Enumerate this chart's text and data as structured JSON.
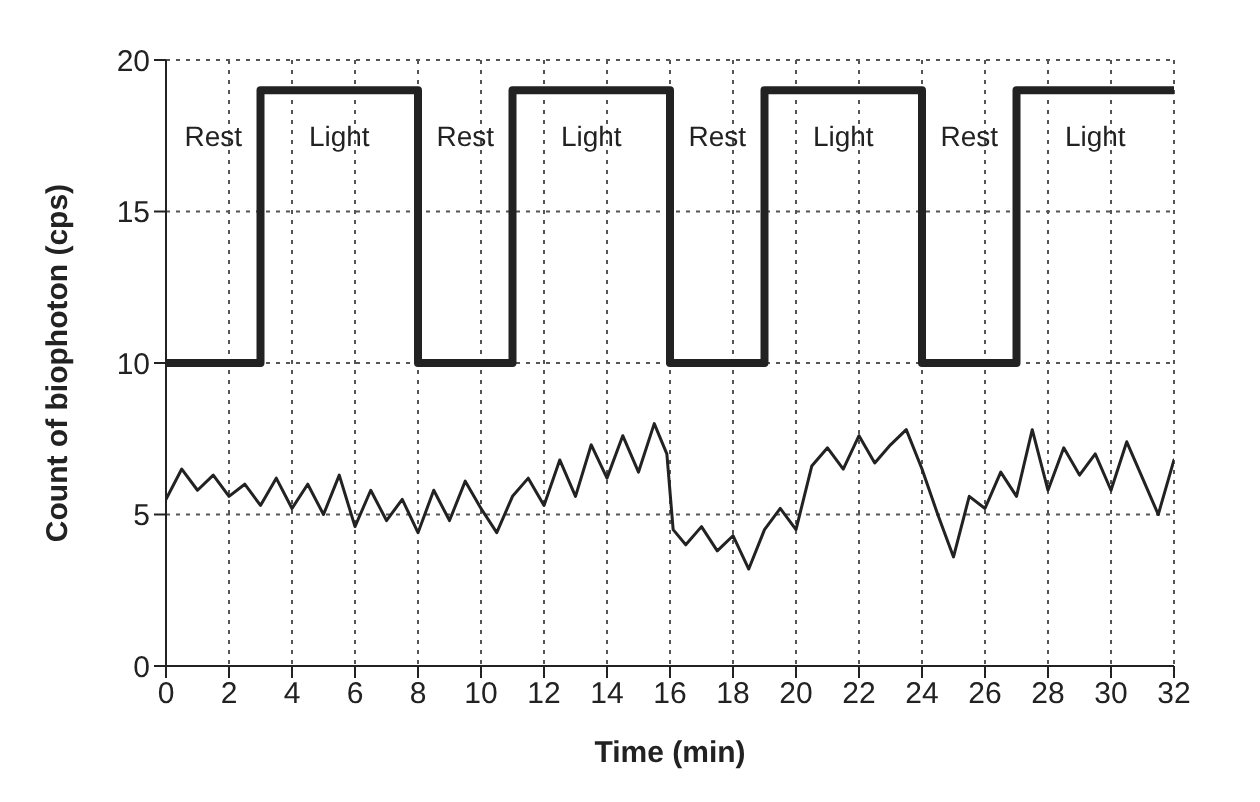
{
  "chart_data": {
    "type": "line",
    "xlabel": "Time (min)",
    "ylabel": "Count of biophoton (cps)",
    "xlim": [
      0,
      32
    ],
    "xticks": [
      0,
      2,
      4,
      6,
      8,
      10,
      12,
      14,
      16,
      18,
      20,
      22,
      24,
      26,
      28,
      30,
      32
    ],
    "ylim": [
      0,
      20
    ],
    "yticks": [
      0,
      5,
      10,
      15,
      20
    ],
    "grid": true,
    "line_style": "solid",
    "marker": "none",
    "series": [
      {
        "color": "#222222",
        "x": [
          0,
          3,
          3,
          8,
          8,
          11,
          11,
          16,
          16,
          19,
          19,
          24,
          24,
          27,
          27,
          32
        ],
        "values": [
          10,
          10,
          19,
          19,
          10,
          10,
          19,
          19,
          10,
          10,
          19,
          19,
          10,
          10,
          19,
          19
        ]
      },
      {
        "color": "#222222",
        "x": [
          0,
          0.5,
          1,
          1.5,
          2,
          2.5,
          3,
          3.5,
          4,
          4.5,
          5,
          5.5,
          6,
          6.5,
          7,
          7.5,
          8,
          8.5,
          9,
          9.5,
          10,
          10.5,
          11,
          11.5,
          12,
          12.5,
          13,
          13.5,
          14,
          14.5,
          15,
          15.5,
          15.9,
          16.1,
          16.5,
          17,
          17.5,
          18,
          18.5,
          19,
          19.5,
          20,
          20.5,
          21,
          21.5,
          22,
          22.5,
          23,
          23.5,
          24,
          24.5,
          25,
          25.5,
          26,
          26.5,
          27,
          27.5,
          28,
          28.5,
          29,
          29.5,
          30,
          30.5,
          31,
          31.5,
          32
        ],
        "values": [
          5.5,
          6.5,
          5.8,
          6.3,
          5.6,
          6.0,
          5.3,
          6.2,
          5.2,
          6.0,
          5.0,
          6.3,
          4.6,
          5.8,
          4.8,
          5.5,
          4.4,
          5.8,
          4.8,
          6.1,
          5.2,
          4.4,
          5.6,
          6.2,
          5.3,
          6.8,
          5.6,
          7.3,
          6.2,
          7.6,
          6.4,
          8.0,
          7.0,
          4.5,
          4.0,
          4.6,
          3.8,
          4.3,
          3.2,
          4.5,
          5.2,
          4.5,
          6.6,
          7.2,
          6.5,
          7.6,
          6.7,
          7.3,
          7.8,
          6.5,
          5.0,
          3.6,
          5.6,
          5.2,
          6.4,
          5.6,
          7.8,
          5.8,
          7.2,
          6.3,
          7.0,
          5.8,
          7.4,
          6.2,
          5.0,
          6.8
        ]
      }
    ],
    "annotations": [
      "Rest",
      "Light",
      "Rest",
      "Light",
      "Rest",
      "Light",
      "Rest",
      "Light"
    ]
  }
}
